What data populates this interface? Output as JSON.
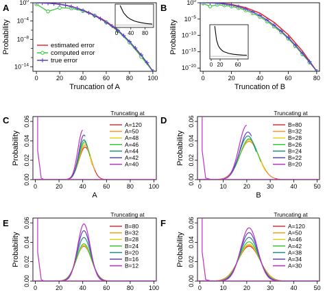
{
  "chart_data": [
    {
      "panel": "A",
      "type": "line",
      "xlabel": "Truncation of A",
      "ylabel": "Probability",
      "xlim": [
        -3,
        103
      ],
      "ylog": true,
      "ylim_exp": [
        -15,
        0
      ],
      "x_ticks": [
        0,
        20,
        40,
        60,
        80,
        100
      ],
      "y_ticks": [
        {
          "base": "10",
          "exp": "0",
          "v": 0
        },
        {
          "base": "10",
          "exp": "−4",
          "v": -4
        },
        {
          "base": "10",
          "exp": "−8",
          "v": -8
        },
        {
          "base": "10",
          "exp": "−14",
          "v": -14
        }
      ],
      "y_ticks_minor": [
        -2,
        -6,
        -10,
        -12
      ],
      "legend_position": "bottom-left",
      "legend": [
        {
          "label": "estimated error",
          "color": "#e8292f",
          "marker": "none"
        },
        {
          "label": "computed error",
          "color": "#35c735",
          "marker": "circle"
        },
        {
          "label": "true error",
          "color": "#5a43c9",
          "marker": "plus"
        }
      ],
      "series": [
        {
          "color": "#e8292f",
          "marker": "none",
          "x": [
            0,
            10,
            20,
            30,
            40,
            50,
            60,
            70,
            80,
            90,
            100
          ],
          "y": [
            0,
            -0.1,
            -0.3,
            -0.8,
            -1.6,
            -2.7,
            -4.1,
            -6,
            -8.5,
            -11.5,
            -15
          ]
        },
        {
          "color": "#35c735",
          "marker": "circle",
          "x": [
            0,
            10,
            20,
            30,
            40,
            50,
            60,
            70,
            80,
            90,
            100
          ],
          "y": [
            -0.3,
            -1.9,
            -1.1,
            -1.2,
            -1.8,
            -2.8,
            -4.3,
            -6.2,
            -8.7,
            -11.8,
            -15
          ]
        },
        {
          "color": "#5a43c9",
          "marker": "plus",
          "x": [
            0,
            5,
            10,
            15,
            20,
            25,
            30,
            35,
            40,
            45,
            50,
            55,
            60,
            65,
            70,
            75,
            80,
            85,
            90,
            95,
            100
          ],
          "y": [
            0,
            -0.05,
            -0.1,
            -0.2,
            -0.35,
            -0.55,
            -0.85,
            -1.2,
            -1.7,
            -2.2,
            -2.85,
            -3.5,
            -4.3,
            -5.1,
            -6.1,
            -7.2,
            -8.5,
            -9.9,
            -11.4,
            -13.1,
            -15
          ]
        }
      ],
      "inset": {
        "xlim": [
          0,
          100
        ],
        "x_ticks": [
          0,
          40,
          80
        ],
        "x": [
          10,
          20,
          30,
          40,
          50,
          60,
          70,
          80,
          90,
          100
        ],
        "y": [
          1.0,
          0.62,
          0.42,
          0.3,
          0.22,
          0.17,
          0.13,
          0.1,
          0.08,
          0.065
        ]
      }
    },
    {
      "panel": "B",
      "type": "line",
      "xlabel": "Truncation of B",
      "ylabel": "Probability",
      "xlim": [
        -2,
        82
      ],
      "ylog": true,
      "ylim_exp": [
        -21,
        0
      ],
      "x_ticks": [
        0,
        20,
        40,
        60,
        80
      ],
      "y_ticks": [
        {
          "base": "10",
          "exp": "0",
          "v": 0
        },
        {
          "base": "10",
          "exp": "−5",
          "v": -5
        },
        {
          "base": "10",
          "exp": "−10",
          "v": -10
        },
        {
          "base": "10",
          "exp": "−15",
          "v": -15
        },
        {
          "base": "10",
          "exp": "−20",
          "v": -20
        }
      ],
      "y_ticks_minor": [],
      "legend_position": "none",
      "legend": [],
      "series": [
        {
          "color": "#e8292f",
          "marker": "none",
          "x": [
            0,
            10,
            20,
            30,
            40,
            50,
            60,
            70,
            80
          ],
          "y": [
            0,
            -0.1,
            -0.5,
            -1.5,
            -3.2,
            -6,
            -9.8,
            -14.8,
            -21
          ]
        },
        {
          "color": "#35c735",
          "marker": "circle",
          "x": [
            0,
            5,
            10,
            15,
            20,
            25,
            30,
            35,
            40,
            45,
            50,
            55,
            60,
            65,
            70,
            75,
            80
          ],
          "y": [
            -0.2,
            -1.1,
            -0.6,
            -0.8,
            -1.1,
            -1.6,
            -2.3,
            -3.2,
            -4.3,
            -5.7,
            -7.3,
            -9,
            -11,
            -13.3,
            -15.8,
            -18.3,
            -21
          ]
        },
        {
          "color": "#5a43c9",
          "marker": "plus",
          "x": [
            0,
            5,
            10,
            15,
            20,
            25,
            30,
            35,
            40,
            45,
            50,
            55,
            60,
            65,
            70,
            75,
            80
          ],
          "y": [
            0,
            -0.05,
            -0.15,
            -0.35,
            -0.7,
            -1.2,
            -1.9,
            -2.8,
            -3.9,
            -5.3,
            -6.9,
            -8.7,
            -10.7,
            -13,
            -15.5,
            -18.1,
            -21
          ]
        }
      ],
      "inset": {
        "xlim": [
          0,
          80
        ],
        "x_ticks": [
          0,
          20,
          60
        ],
        "x": [
          8,
          12,
          16,
          20,
          25,
          30,
          40,
          50,
          60,
          70,
          80
        ],
        "y": [
          1.0,
          0.55,
          0.36,
          0.27,
          0.2,
          0.16,
          0.11,
          0.085,
          0.07,
          0.06,
          0.055
        ]
      }
    },
    {
      "panel": "C",
      "type": "line",
      "xlabel": "A",
      "ylabel": "Probability",
      "xlim": [
        -2,
        102
      ],
      "ylim": [
        0,
        0.065
      ],
      "x_ticks": [
        0,
        20,
        40,
        60,
        80,
        100
      ],
      "y_ticks": [
        "0.00",
        "0.02",
        "0.04",
        "0.06"
      ],
      "legend_title": "Truncating at",
      "legend_position": "right",
      "spike": {
        "x0": 2,
        "x1": 5
      },
      "series": [
        {
          "name": "A=120",
          "color": "#e8292f",
          "mu": 42,
          "sigma": 5.2,
          "peak": 0.0335
        },
        {
          "name": "A=50",
          "color": "#f29a1c",
          "mu": 42,
          "sigma": 5.0,
          "peak": 0.0355
        },
        {
          "name": "A=48",
          "color": "#e0d21a",
          "mu": 41.5,
          "sigma": 4.8,
          "peak": 0.037
        },
        {
          "name": "A=46",
          "color": "#35c735",
          "mu": 41.5,
          "sigma": 4.6,
          "peak": 0.039
        },
        {
          "name": "A=44",
          "color": "#238a8a",
          "mu": 41,
          "sigma": 4.5,
          "peak": 0.041
        },
        {
          "name": "A=42",
          "color": "#5a43c9",
          "mu": 41,
          "sigma": 4.3,
          "peak": 0.046
        },
        {
          "name": "A=40",
          "color": "#c030c0",
          "mu": 40,
          "sigma": 4.1,
          "peak": 0.051
        }
      ],
      "cutoffs": [
        120,
        50,
        48,
        46,
        44,
        42,
        40
      ]
    },
    {
      "panel": "D",
      "type": "line",
      "xlabel": "B",
      "ylabel": "Probability",
      "xlim": [
        -1,
        51
      ],
      "ylim": [
        0,
        0.065
      ],
      "x_ticks": [
        0,
        10,
        20,
        30,
        40,
        50
      ],
      "y_ticks": [
        "0.00",
        "0.02",
        "0.04",
        "0.06"
      ],
      "legend_title": "Truncating at",
      "legend_position": "right",
      "spike": {
        "x0": 1,
        "x1": 2.5
      },
      "series": [
        {
          "name": "B=80",
          "color": "#e8292f",
          "mu": 21,
          "sigma": 4.2,
          "peak": 0.0395
        },
        {
          "name": "B=32",
          "color": "#f29a1c",
          "mu": 21,
          "sigma": 4.2,
          "peak": 0.0395
        },
        {
          "name": "B=28",
          "color": "#e0d21a",
          "mu": 21,
          "sigma": 4.0,
          "peak": 0.041
        },
        {
          "name": "B=26",
          "color": "#35c735",
          "mu": 21,
          "sigma": 3.9,
          "peak": 0.042
        },
        {
          "name": "B=24",
          "color": "#238a8a",
          "mu": 20.5,
          "sigma": 3.7,
          "peak": 0.045
        },
        {
          "name": "B=22",
          "color": "#5a43c9",
          "mu": 20.5,
          "sigma": 3.5,
          "peak": 0.049
        },
        {
          "name": "B=20",
          "color": "#c030c0",
          "mu": 20,
          "sigma": 3.3,
          "peak": 0.056
        }
      ],
      "cutoffs": [
        80,
        32,
        28,
        26,
        24,
        22,
        20
      ]
    },
    {
      "panel": "E",
      "type": "line",
      "xlabel": "",
      "ylabel": "Probability",
      "xlim": [
        -2,
        102
      ],
      "ylim": [
        0,
        0.065
      ],
      "x_ticks": [
        0,
        20,
        40,
        60,
        80,
        100
      ],
      "y_ticks": [
        "0.00",
        "0.02",
        "0.04",
        "0.06"
      ],
      "legend_title": "Truncating at",
      "legend_position": "right",
      "spike": {
        "x0": 2,
        "x1": 5
      },
      "series": [
        {
          "name": "B=80",
          "color": "#e8292f",
          "mu": 41,
          "sigma": 6.5,
          "peak": 0.036
        },
        {
          "name": "B=32",
          "color": "#f29a1c",
          "mu": 41,
          "sigma": 6.4,
          "peak": 0.0365
        },
        {
          "name": "B=28",
          "color": "#e0d21a",
          "mu": 41,
          "sigma": 6.3,
          "peak": 0.037
        },
        {
          "name": "B=24",
          "color": "#35c735",
          "mu": 41,
          "sigma": 6.2,
          "peak": 0.0385
        },
        {
          "name": "B=20",
          "color": "#238a8a",
          "mu": 41,
          "sigma": 5.9,
          "peak": 0.045
        },
        {
          "name": "B=16",
          "color": "#5a43c9",
          "mu": 41,
          "sigma": 5.6,
          "peak": 0.052
        },
        {
          "name": "B=12",
          "color": "#c030c0",
          "mu": 41,
          "sigma": 5.3,
          "peak": 0.059
        }
      ],
      "cutoffs": []
    },
    {
      "panel": "F",
      "type": "line",
      "xlabel": "",
      "ylabel": "Probability",
      "xlim": [
        -1,
        51
      ],
      "ylim": [
        0,
        0.065
      ],
      "x_ticks": [
        0,
        10,
        20,
        30,
        40,
        50
      ],
      "y_ticks": [
        "0.00",
        "0.02",
        "0.04",
        "0.06"
      ],
      "legend_title": "Truncating at",
      "legend_position": "right",
      "spike": {
        "x0": 1,
        "x1": 2.5
      },
      "series": [
        {
          "name": "A=120",
          "color": "#e8292f",
          "mu": 21,
          "sigma": 4.6,
          "peak": 0.036
        },
        {
          "name": "A=50",
          "color": "#f29a1c",
          "mu": 21,
          "sigma": 4.5,
          "peak": 0.037
        },
        {
          "name": "A=46",
          "color": "#e0d21a",
          "mu": 21,
          "sigma": 4.4,
          "peak": 0.038
        },
        {
          "name": "A=42",
          "color": "#35c735",
          "mu": 21,
          "sigma": 4.2,
          "peak": 0.0405
        },
        {
          "name": "A=38",
          "color": "#238a8a",
          "mu": 21,
          "sigma": 4.0,
          "peak": 0.045
        },
        {
          "name": "A=34",
          "color": "#5a43c9",
          "mu": 21,
          "sigma": 3.8,
          "peak": 0.05
        },
        {
          "name": "A=30",
          "color": "#c030c0",
          "mu": 21,
          "sigma": 3.6,
          "peak": 0.055
        }
      ],
      "cutoffs": []
    }
  ]
}
